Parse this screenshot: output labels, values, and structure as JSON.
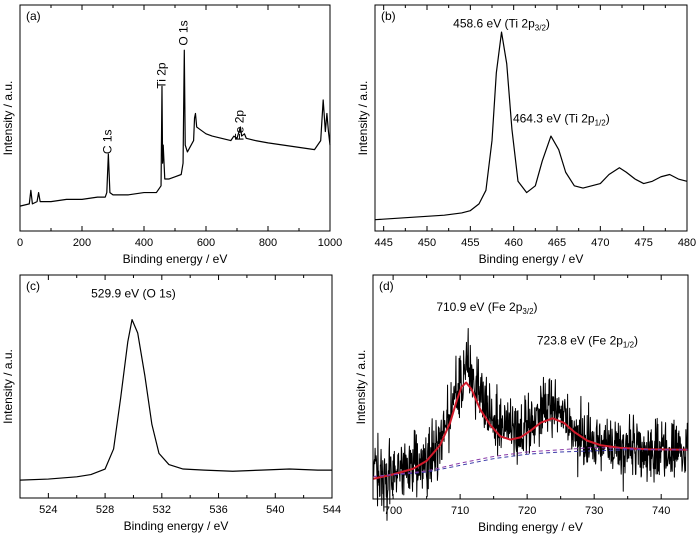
{
  "chart_data": [
    {
      "type": "line",
      "panel_label": "(a)",
      "xlabel": "Binding energy / eV",
      "ylabel": "Intensity / a.u.",
      "xlim": [
        0,
        1000
      ],
      "ylim": [
        0,
        100
      ],
      "x_ticks": [
        0,
        200,
        400,
        600,
        800,
        1000
      ],
      "y_ticks_shown": false,
      "annotations": [
        {
          "text": "C 1s",
          "x": 285,
          "y": 34,
          "rotated": true
        },
        {
          "text": "Ti 2p",
          "x": 459,
          "y": 63,
          "rotated": true
        },
        {
          "text": "O 1s",
          "x": 530,
          "y": 82,
          "rotated": true
        },
        {
          "text": "Fe 2p",
          "x": 711,
          "y": 40,
          "rotated": true
        }
      ],
      "series": [
        {
          "points": [
            [
              0,
              11
            ],
            [
              30,
              12
            ],
            [
              35,
              18
            ],
            [
              40,
              12
            ],
            [
              55,
              13
            ],
            [
              60,
              17
            ],
            [
              65,
              13
            ],
            [
              100,
              13
            ],
            [
              150,
              14
            ],
            [
              200,
              14
            ],
            [
              250,
              15
            ],
            [
              275,
              15
            ],
            [
              280,
              17
            ],
            [
              285,
              34
            ],
            [
              290,
              17
            ],
            [
              300,
              16
            ],
            [
              350,
              16
            ],
            [
              400,
              17
            ],
            [
              440,
              17
            ],
            [
              455,
              20
            ],
            [
              458,
              64
            ],
            [
              460,
              30
            ],
            [
              462,
              38
            ],
            [
              464,
              32
            ],
            [
              467,
              23
            ],
            [
              480,
              23
            ],
            [
              500,
              24
            ],
            [
              520,
              25
            ],
            [
              526,
              30
            ],
            [
              530,
              80
            ],
            [
              533,
              38
            ],
            [
              540,
              35
            ],
            [
              560,
              40
            ],
            [
              563,
              50
            ],
            [
              566,
              52
            ],
            [
              570,
              46
            ],
            [
              580,
              45
            ],
            [
              600,
              43
            ],
            [
              620,
              42
            ],
            [
              650,
              41
            ],
            [
              680,
              40
            ],
            [
              690,
              42
            ],
            [
              700,
              41
            ],
            [
              711,
              46
            ],
            [
              715,
              42
            ],
            [
              724,
              43
            ],
            [
              730,
              41
            ],
            [
              760,
              40
            ],
            [
              800,
              39
            ],
            [
              850,
              38
            ],
            [
              900,
              37
            ],
            [
              950,
              36
            ],
            [
              970,
              40
            ],
            [
              978,
              58
            ],
            [
              985,
              44
            ],
            [
              990,
              52
            ],
            [
              995,
              44
            ],
            [
              1000,
              38
            ]
          ]
        }
      ]
    },
    {
      "type": "line",
      "panel_label": "(b)",
      "xlabel": "Binding energy / eV",
      "ylabel": "Intensity / a.u.",
      "xlim": [
        444,
        480
      ],
      "ylim": [
        0,
        100
      ],
      "x_ticks": [
        445,
        450,
        455,
        460,
        465,
        470,
        475,
        480
      ],
      "y_ticks_shown": false,
      "annotations": [
        {
          "text": "458.6 eV (Ti 2p",
          "sub": "3/2",
          "close": ")",
          "x": 458.6,
          "y": 90
        },
        {
          "text": "464.3 eV (Ti 2p",
          "sub": "1/2",
          "close": ")",
          "x": 465.5,
          "y": 48
        }
      ],
      "series": [
        {
          "points": [
            [
              444,
              5
            ],
            [
              448,
              6
            ],
            [
              452,
              7
            ],
            [
              454,
              8
            ],
            [
              455,
              9
            ],
            [
              456,
              12
            ],
            [
              456.8,
              18
            ],
            [
              457.5,
              40
            ],
            [
              458,
              70
            ],
            [
              458.6,
              88
            ],
            [
              459.2,
              74
            ],
            [
              459.8,
              45
            ],
            [
              460.5,
              22
            ],
            [
              461.5,
              17
            ],
            [
              462.5,
              20
            ],
            [
              463.3,
              31
            ],
            [
              464.3,
              42
            ],
            [
              465.2,
              36
            ],
            [
              466,
              26
            ],
            [
              467,
              20
            ],
            [
              468,
              19
            ],
            [
              469,
              20
            ],
            [
              470,
              21
            ],
            [
              471,
              25
            ],
            [
              472.2,
              28
            ],
            [
              473,
              26
            ],
            [
              474,
              23
            ],
            [
              475,
              21
            ],
            [
              476,
              22
            ],
            [
              477,
              24
            ],
            [
              478,
              25
            ],
            [
              479,
              23
            ],
            [
              480,
              22
            ]
          ]
        }
      ]
    },
    {
      "type": "line",
      "panel_label": "(c)",
      "xlabel": "Binding energy / eV",
      "ylabel": "Intensity / a.u.",
      "xlim": [
        522,
        544
      ],
      "ylim": [
        0,
        100
      ],
      "x_ticks": [
        524,
        528,
        532,
        536,
        540,
        544
      ],
      "y_ticks_shown": false,
      "annotations": [
        {
          "text": "529.9 eV (O 1s)",
          "x": 530,
          "y": 90
        }
      ],
      "series": [
        {
          "points": [
            [
              522,
              8
            ],
            [
              524,
              8.5
            ],
            [
              526,
              9.5
            ],
            [
              527,
              10.5
            ],
            [
              528,
              13
            ],
            [
              528.6,
              22
            ],
            [
              529.1,
              45
            ],
            [
              529.6,
              70
            ],
            [
              529.9,
              80
            ],
            [
              530.3,
              74
            ],
            [
              530.8,
              55
            ],
            [
              531.3,
              33
            ],
            [
              531.8,
              20
            ],
            [
              532.5,
              15
            ],
            [
              533.5,
              13
            ],
            [
              535,
              12.5
            ],
            [
              537,
              12
            ],
            [
              539,
              12.5
            ],
            [
              541,
              13
            ],
            [
              543,
              12.5
            ],
            [
              544,
              12.5
            ]
          ]
        }
      ]
    },
    {
      "type": "line",
      "panel_label": "(d)",
      "xlabel": "Binding energy / eV",
      "ylabel": "Intensity / a.u.",
      "xlim": [
        697,
        744
      ],
      "ylim": [
        0,
        100
      ],
      "x_ticks": [
        700,
        710,
        720,
        730,
        740
      ],
      "y_ticks_shown": false,
      "annotations": [
        {
          "text": "710.9 eV (Fe 2p",
          "sub": "3/2",
          "close": ")",
          "x": 714,
          "y": 84
        },
        {
          "text": "723.8 eV (Fe 2p",
          "sub": "1/2",
          "close": ")",
          "x": 729,
          "y": 69
        }
      ],
      "series": [
        {
          "name": "experimental",
          "color": "#000000",
          "noise": 9,
          "points": [
            [
              697,
              10
            ],
            [
              700,
              12
            ],
            [
              703,
              14
            ],
            [
              705,
              17
            ],
            [
              707,
              26
            ],
            [
              709,
              44
            ],
            [
              710.9,
              60
            ],
            [
              712,
              53
            ],
            [
              714,
              40
            ],
            [
              716,
              31
            ],
            [
              718,
              28
            ],
            [
              720,
              32
            ],
            [
              722,
              38
            ],
            [
              723.8,
              41
            ],
            [
              725.5,
              38
            ],
            [
              727,
              30
            ],
            [
              729,
              25
            ],
            [
              731,
              24
            ],
            [
              734,
              23
            ],
            [
              738,
              22.5
            ],
            [
              744,
              22
            ]
          ]
        },
        {
          "name": "fit envelope",
          "color": "#d11a2a",
          "points": [
            [
              697,
              9
            ],
            [
              700,
              11
            ],
            [
              703,
              13.5
            ],
            [
              705,
              17
            ],
            [
              707,
              24
            ],
            [
              708.5,
              34
            ],
            [
              709.5,
              44
            ],
            [
              710.2,
              50
            ],
            [
              710.9,
              52
            ],
            [
              711.7,
              49
            ],
            [
              713,
              40
            ],
            [
              714.5,
              33
            ],
            [
              716,
              28
            ],
            [
              717.5,
              26.5
            ],
            [
              719,
              27.5
            ],
            [
              720.5,
              30.5
            ],
            [
              722,
              34
            ],
            [
              723.8,
              36
            ],
            [
              725.5,
              34
            ],
            [
              727,
              30
            ],
            [
              729,
              26
            ],
            [
              731,
              24
            ],
            [
              734,
              22.8
            ],
            [
              738,
              22.2
            ],
            [
              744,
              22
            ]
          ]
        },
        {
          "name": "baseline",
          "color": "#3a3aa8",
          "dashed": true,
          "points": [
            [
              697,
              10
            ],
            [
              705,
              12
            ],
            [
              710,
              15
            ],
            [
              715,
              18
            ],
            [
              720,
              20
            ],
            [
              725,
              21
            ],
            [
              730,
              21.5
            ],
            [
              735,
              22
            ],
            [
              740,
              22
            ],
            [
              744,
              22
            ]
          ]
        },
        {
          "name": "satellite",
          "color": "#8a3aa8",
          "dashed": true,
          "points": [
            [
              697,
              10
            ],
            [
              705,
              12.5
            ],
            [
              710,
              16
            ],
            [
              715,
              19
            ],
            [
              720,
              21
            ],
            [
              725,
              22
            ],
            [
              730,
              23
            ],
            [
              735,
              22.5
            ],
            [
              740,
              22
            ],
            [
              744,
              22
            ]
          ]
        }
      ]
    }
  ]
}
